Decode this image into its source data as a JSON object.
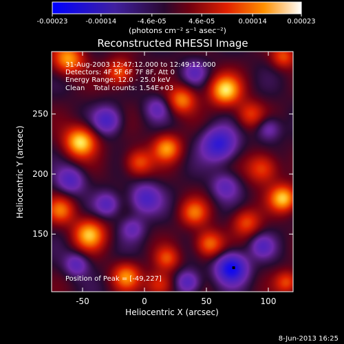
{
  "colorbar": {
    "ticks": [
      "-0.00023",
      "-0.00014",
      "-4.6e-05",
      "4.6e-05",
      "0.00014",
      "0.00023"
    ],
    "tick_values": [
      -0.00023,
      -0.00014,
      -4.6e-05,
      4.6e-05,
      0.00014,
      0.00023
    ],
    "range": [
      -0.00023,
      0.00023
    ],
    "units_label": "(photons cm⁻² s⁻¹ asec⁻²)"
  },
  "annotations": {
    "time_range": "31-Aug-2003 12:47:12.000 to 12:49:12.000",
    "detectors": "Detectors: 4F 5F 6F 7F 8F, Att 0",
    "energy": "Energy Range: 12.0 - 25.0 keV",
    "algorithm": "Clean",
    "total_counts": "Total counts: 1.54E+03",
    "peak_position": "Position of Peak = [-49,227]"
  },
  "footer": {
    "date": "8-Jun-2013 16:25"
  },
  "chart_data": {
    "type": "heatmap",
    "title": "Reconstructed RHESSI Image",
    "xlabel": "Heliocentric X (arcsec)",
    "ylabel": "Heliocentric Y (arcsec)",
    "xlim": [
      -75,
      120
    ],
    "ylim": [
      102,
      302
    ],
    "xticks": [
      -50,
      0,
      50,
      100
    ],
    "yticks": [
      150,
      200,
      250
    ],
    "peak": {
      "x": -49,
      "y": 227
    },
    "marker": {
      "x": 72,
      "y": 122
    },
    "colormap": "blue-purple-red-yellow-white",
    "blobs": [
      {
        "x": -52,
        "y": 227,
        "s": 9,
        "a": 1.0
      },
      {
        "x": -62,
        "y": 296,
        "s": 9,
        "a": 0.8
      },
      {
        "x": -20,
        "y": 285,
        "s": 8,
        "a": 0.65
      },
      {
        "x": 65,
        "y": 270,
        "s": 9,
        "a": 0.95
      },
      {
        "x": 30,
        "y": 262,
        "s": 8,
        "a": 0.7
      },
      {
        "x": 85,
        "y": 250,
        "s": 8,
        "a": 0.5
      },
      {
        "x": 112,
        "y": 298,
        "s": 7,
        "a": 0.55
      },
      {
        "x": 18,
        "y": 222,
        "s": 8,
        "a": 0.75
      },
      {
        "x": -5,
        "y": 210,
        "s": 8,
        "a": 0.6
      },
      {
        "x": 95,
        "y": 205,
        "s": 9,
        "a": 0.6
      },
      {
        "x": -68,
        "y": 170,
        "s": 8,
        "a": 0.6
      },
      {
        "x": -45,
        "y": 150,
        "s": 9,
        "a": 0.85
      },
      {
        "x": 40,
        "y": 168,
        "s": 8,
        "a": 0.6
      },
      {
        "x": 82,
        "y": 160,
        "s": 8,
        "a": 0.55
      },
      {
        "x": 112,
        "y": 180,
        "s": 8,
        "a": 0.9
      },
      {
        "x": 52,
        "y": 142,
        "s": 8,
        "a": 0.7
      },
      {
        "x": 18,
        "y": 130,
        "s": 7,
        "a": 0.5
      },
      {
        "x": -15,
        "y": 115,
        "s": 8,
        "a": 0.7
      },
      {
        "x": 12,
        "y": 108,
        "s": 8,
        "a": 0.55
      },
      {
        "x": 115,
        "y": 110,
        "s": 7,
        "a": 0.55
      },
      {
        "x": -30,
        "y": 245,
        "s": 8,
        "a": -0.6
      },
      {
        "x": 60,
        "y": 225,
        "s": 10,
        "a": -0.8
      },
      {
        "x": -60,
        "y": 195,
        "s": 8,
        "a": -0.55
      },
      {
        "x": 0,
        "y": 180,
        "s": 9,
        "a": -0.6
      },
      {
        "x": 65,
        "y": 190,
        "s": 8,
        "a": -0.45
      },
      {
        "x": -30,
        "y": 175,
        "s": 7,
        "a": -0.5
      },
      {
        "x": 100,
        "y": 238,
        "s": 7,
        "a": -0.45
      },
      {
        "x": 10,
        "y": 255,
        "s": 7,
        "a": -0.4
      },
      {
        "x": 70,
        "y": 122,
        "s": 9,
        "a": -1.0
      },
      {
        "x": 35,
        "y": 110,
        "s": 7,
        "a": -0.6
      },
      {
        "x": -55,
        "y": 125,
        "s": 7,
        "a": -0.5
      },
      {
        "x": 95,
        "y": 140,
        "s": 7,
        "a": -0.45
      },
      {
        "x": -10,
        "y": 155,
        "s": 7,
        "a": -0.4
      },
      {
        "x": 40,
        "y": 285,
        "s": 7,
        "a": -0.4
      }
    ]
  }
}
